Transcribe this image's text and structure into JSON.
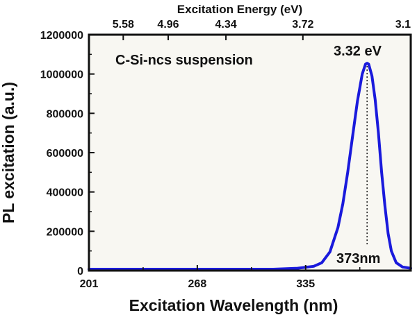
{
  "chart_data": {
    "type": "line",
    "title": "",
    "xlabel": "Excitation Wavelength (nm)",
    "ylabel": "PL excitation (a.u.)",
    "x2label": "Excitation Energy (eV)",
    "xlim": [
      201,
      400
    ],
    "ylim": [
      0,
      1200000
    ],
    "x_ticks": [
      {
        "value": 201,
        "label": "201"
      },
      {
        "value": 268,
        "label": "268"
      },
      {
        "value": 335,
        "label": "335"
      }
    ],
    "x2_ticks": [
      {
        "value": 222.2,
        "label": "5.58"
      },
      {
        "value": 250,
        "label": "4.96"
      },
      {
        "value": 285.7,
        "label": "4.34"
      },
      {
        "value": 333.3,
        "label": "3.72"
      },
      {
        "value": 400,
        "label": "3.1"
      }
    ],
    "y_ticks": [
      {
        "value": 0,
        "label": "0"
      },
      {
        "value": 200000,
        "label": "200000"
      },
      {
        "value": 400000,
        "label": "400000"
      },
      {
        "value": 600000,
        "label": "600000"
      },
      {
        "value": 800000,
        "label": "800000"
      },
      {
        "value": 1000000,
        "label": "1000000"
      },
      {
        "value": 1200000,
        "label": "1200000"
      }
    ],
    "series": [
      {
        "name": "C-Si-ncs suspension",
        "color": "#1a1adc",
        "x": [
          201,
          220,
          240,
          260,
          280,
          300,
          315,
          330,
          340,
          345,
          350,
          355,
          358,
          361,
          364,
          367,
          370,
          372,
          373,
          374,
          376,
          378,
          380,
          382,
          384,
          386,
          388,
          391,
          395,
          400
        ],
        "y": [
          0,
          0,
          0,
          500,
          1500,
          3000,
          6000,
          12000,
          22000,
          40000,
          95000,
          220000,
          340000,
          500000,
          680000,
          860000,
          1000000,
          1050000,
          1055000,
          1050000,
          990000,
          870000,
          700000,
          500000,
          330000,
          190000,
          100000,
          40000,
          18000,
          12000
        ]
      }
    ],
    "annotations": {
      "legend_text": "C-Si-ncs suspension",
      "peak_energy_label": "3.32 eV",
      "peak_wavelength_label": "373nm",
      "peak_x": 373
    },
    "colors": {
      "line": "#1a1adc",
      "plot_background": "#f8f7f2",
      "axis": "#111111"
    }
  }
}
